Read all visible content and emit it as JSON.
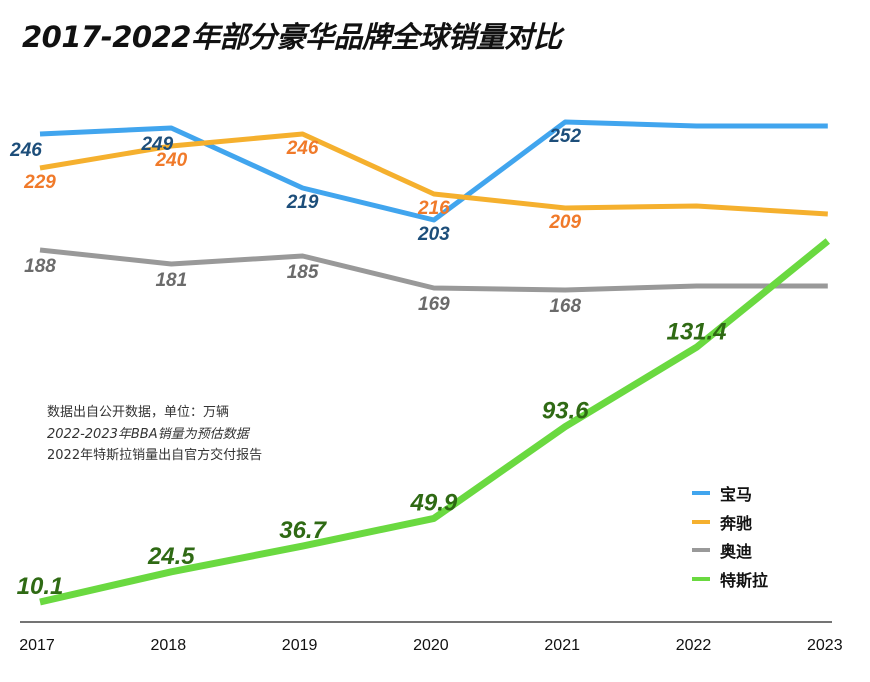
{
  "title": "2017-2022年部分豪华品牌全球销量对比",
  "notes": [
    "数据出自公开数据，单位：万辆",
    "2022-2023年BBA销量为预估数据",
    "2022年特斯拉销量出自官方交付报告"
  ],
  "chart_data": {
    "type": "line",
    "title": "2017-2022年部分豪华品牌全球销量对比",
    "x": [
      "2017",
      "2018",
      "2019",
      "2020",
      "2021",
      "2022",
      "2023"
    ],
    "unit": "万辆",
    "grid": false,
    "legend_position": "bottom-right",
    "series": [
      {
        "name": "宝马",
        "color": "#41a5ee",
        "label_color": "#1d4e7a",
        "values": [
          246,
          249,
          219,
          203,
          252,
          250,
          250
        ],
        "labels": [
          "246",
          "249",
          "219",
          "203",
          "252",
          "",
          ""
        ]
      },
      {
        "name": "奔驰",
        "color": "#f5b02e",
        "label_color": "#f07a2a",
        "values": [
          229,
          240,
          246,
          216,
          209,
          210,
          206
        ],
        "labels": [
          "229",
          "240",
          "246",
          "216",
          "209",
          "",
          ""
        ]
      },
      {
        "name": "奥迪",
        "color": "#999999",
        "label_color": "#6b6b6b",
        "values": [
          188,
          181,
          185,
          169,
          168,
          170,
          170
        ],
        "labels": [
          "188",
          "181",
          "185",
          "169",
          "168",
          "",
          ""
        ]
      },
      {
        "name": "特斯拉",
        "color": "#6ad940",
        "label_color": "#2f6a14",
        "values": [
          10.1,
          24.5,
          36.7,
          49.9,
          93.6,
          131.4,
          182
        ],
        "labels": [
          "10.1",
          "24.5",
          "36.7",
          "49.9",
          "93.6",
          "131.4",
          ""
        ]
      }
    ]
  }
}
